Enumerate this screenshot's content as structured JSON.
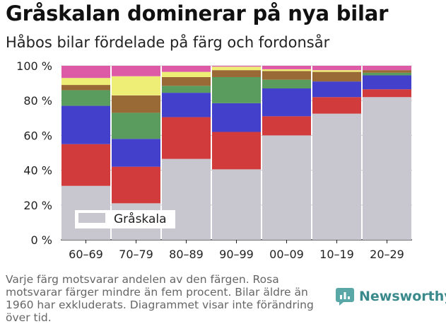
{
  "header": {
    "title": "Gråskalan dominerar på nya bilar",
    "subtitle": "Håbos bilar fördelade på färg och fordonsår"
  },
  "footnote": "Varje färg motsvarar andelen av den färgen. Rosa motsvarar färger mindre än fem procent. Bilar äldre än 1960 har exkluderats. Diagrammet visar inte förändring över tid.",
  "brand": {
    "name": "Newsworthy",
    "icon": "newsworthy-logo-icon",
    "color": "#3a8a8c"
  },
  "chart_data": {
    "type": "bar",
    "stacked": true,
    "categories": [
      "60–69",
      "70–79",
      "80–89",
      "90–99",
      "00–09",
      "10–19",
      "20–29"
    ],
    "y_ticks": [
      "0 %",
      "20 %",
      "40 %",
      "60 %",
      "80 %",
      "100 %"
    ],
    "ylim": [
      0,
      100
    ],
    "grid": true,
    "legend": {
      "position": "bottom-left",
      "entries": [
        "Gråskala"
      ]
    },
    "series": [
      {
        "name": "Gråskala",
        "color": "#c8c6cf",
        "values": [
          31,
          21,
          46.5,
          40.5,
          60,
          72.5,
          82
        ]
      },
      {
        "color": "#d13b3b",
        "values": [
          24,
          21,
          24,
          21.5,
          11,
          9.5,
          4.5
        ]
      },
      {
        "color": "#4340cc",
        "values": [
          22,
          16,
          14,
          16.5,
          16,
          9,
          8
        ]
      },
      {
        "color": "#5a9c5d",
        "values": [
          9,
          15,
          4,
          15,
          5,
          0,
          1.5
        ]
      },
      {
        "color": "#9a6a36",
        "values": [
          3,
          10,
          5,
          4,
          5,
          5.5,
          1.5
        ]
      },
      {
        "color": "#eeee77",
        "values": [
          4,
          11,
          3,
          2,
          1,
          1,
          0
        ]
      },
      {
        "color": "#dd5aa6",
        "values": [
          7,
          6,
          3.5,
          0.5,
          2,
          2.5,
          2.5
        ]
      }
    ]
  }
}
